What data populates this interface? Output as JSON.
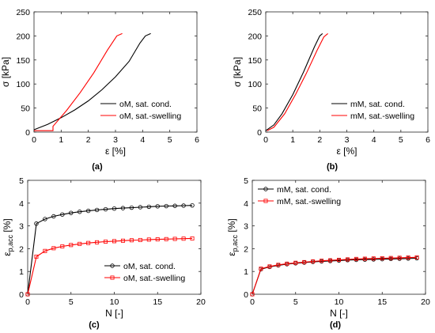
{
  "chart_data": [
    {
      "type": "line",
      "panel_label": "(a)",
      "xlabel": "ε [%]",
      "ylabel": "σ [kPa]",
      "xlim": [
        0,
        6
      ],
      "ylim": [
        0,
        250
      ],
      "xticks": [
        "0",
        "1",
        "2",
        "3",
        "4",
        "5",
        "6"
      ],
      "yticks": [
        "0",
        "50",
        "100",
        "150",
        "200",
        "250"
      ],
      "legend_position": "bottom-right",
      "series": [
        {
          "name": "oM, sat. cond.",
          "color": "#000000",
          "x": [
            0.0,
            0.5,
            1.0,
            1.5,
            2.0,
            2.5,
            3.0,
            3.5,
            3.9,
            4.1,
            4.3
          ],
          "y": [
            5,
            16,
            30,
            46,
            65,
            88,
            115,
            147,
            185,
            200,
            205
          ]
        },
        {
          "name": "oM, sat.-swelling",
          "color": "#ff0000",
          "x": [
            0.0,
            0.7,
            0.7,
            1.2,
            1.7,
            2.2,
            2.7,
            3.05,
            3.25
          ],
          "y": [
            3,
            3,
            12,
            45,
            82,
            123,
            170,
            200,
            205
          ]
        }
      ]
    },
    {
      "type": "line",
      "panel_label": "(b)",
      "xlabel": "ε [%]",
      "ylabel": "σ [kPa]",
      "xlim": [
        0,
        6
      ],
      "ylim": [
        0,
        250
      ],
      "xticks": [
        "0",
        "1",
        "2",
        "3",
        "4",
        "5",
        "6"
      ],
      "yticks": [
        "0",
        "50",
        "100",
        "150",
        "200",
        "250"
      ],
      "legend_position": "bottom-right",
      "series": [
        {
          "name": "mM, sat. cond.",
          "color": "#000000",
          "x": [
            0.0,
            0.3,
            0.6,
            1.0,
            1.4,
            1.8,
            2.0,
            2.1
          ],
          "y": [
            3,
            15,
            38,
            78,
            125,
            177,
            200,
            205
          ]
        },
        {
          "name": "mM, sat.-swelling",
          "color": "#ff0000",
          "x": [
            0.05,
            0.3,
            0.7,
            1.1,
            1.5,
            1.9,
            2.15,
            2.3
          ],
          "y": [
            3,
            10,
            38,
            78,
            122,
            170,
            198,
            205
          ]
        }
      ]
    },
    {
      "type": "line",
      "panel_label": "(c)",
      "xlabel": "N [-]",
      "ylabel": "ε",
      "ylabel_subscript": "p,acc",
      "ylabel_unit": "[%]",
      "xlim": [
        0,
        20
      ],
      "ylim": [
        0,
        5
      ],
      "xticks": [
        "0",
        "5",
        "10",
        "15",
        "20"
      ],
      "yticks": [
        "0",
        "1",
        "2",
        "3",
        "4",
        "5"
      ],
      "legend_position": "bottom-right",
      "series": [
        {
          "name": "oM, sat. cond.",
          "color": "#000000",
          "marker": "circle",
          "x": [
            0,
            1,
            2,
            3,
            4,
            5,
            6,
            7,
            8,
            9,
            10,
            11,
            12,
            13,
            14,
            15,
            16,
            17,
            18,
            19
          ],
          "y": [
            0,
            3.1,
            3.3,
            3.42,
            3.5,
            3.57,
            3.62,
            3.66,
            3.7,
            3.73,
            3.76,
            3.78,
            3.8,
            3.82,
            3.84,
            3.86,
            3.87,
            3.88,
            3.89,
            3.9
          ]
        },
        {
          "name": "oM, sat.-swelling",
          "color": "#ff0000",
          "marker": "square",
          "x": [
            0,
            1,
            2,
            3,
            4,
            5,
            6,
            7,
            8,
            9,
            10,
            11,
            12,
            13,
            14,
            15,
            16,
            17,
            18,
            19
          ],
          "y": [
            0,
            1.65,
            1.9,
            2.02,
            2.1,
            2.16,
            2.21,
            2.25,
            2.28,
            2.31,
            2.33,
            2.35,
            2.37,
            2.38,
            2.4,
            2.41,
            2.42,
            2.43,
            2.44,
            2.45
          ]
        }
      ]
    },
    {
      "type": "line",
      "panel_label": "(d)",
      "xlabel": "N [-]",
      "ylabel": "ε",
      "ylabel_subscript": "p,acc",
      "ylabel_unit": "[%]",
      "xlim": [
        0,
        20
      ],
      "ylim": [
        0,
        5
      ],
      "xticks": [
        "0",
        "5",
        "10",
        "15",
        "20"
      ],
      "yticks": [
        "0",
        "1",
        "2",
        "3",
        "4",
        "5"
      ],
      "legend_position": "top-left",
      "series": [
        {
          "name": "mM, sat. cond.",
          "color": "#000000",
          "marker": "circle",
          "x": [
            0,
            1,
            2,
            3,
            4,
            5,
            6,
            7,
            8,
            9,
            10,
            11,
            12,
            13,
            14,
            15,
            16,
            17,
            18,
            19
          ],
          "y": [
            0,
            1.1,
            1.2,
            1.27,
            1.32,
            1.36,
            1.39,
            1.42,
            1.44,
            1.46,
            1.48,
            1.5,
            1.51,
            1.52,
            1.53,
            1.54,
            1.55,
            1.56,
            1.57,
            1.58
          ]
        },
        {
          "name": "mM, sat.-swelling",
          "color": "#ff0000",
          "marker": "square",
          "x": [
            0,
            1,
            2,
            3,
            4,
            5,
            6,
            7,
            8,
            9,
            10,
            11,
            12,
            13,
            14,
            15,
            16,
            17,
            18,
            19
          ],
          "y": [
            0,
            1.12,
            1.22,
            1.29,
            1.34,
            1.38,
            1.41,
            1.44,
            1.47,
            1.49,
            1.51,
            1.53,
            1.55,
            1.56,
            1.57,
            1.58,
            1.59,
            1.6,
            1.61,
            1.62
          ]
        }
      ]
    }
  ]
}
